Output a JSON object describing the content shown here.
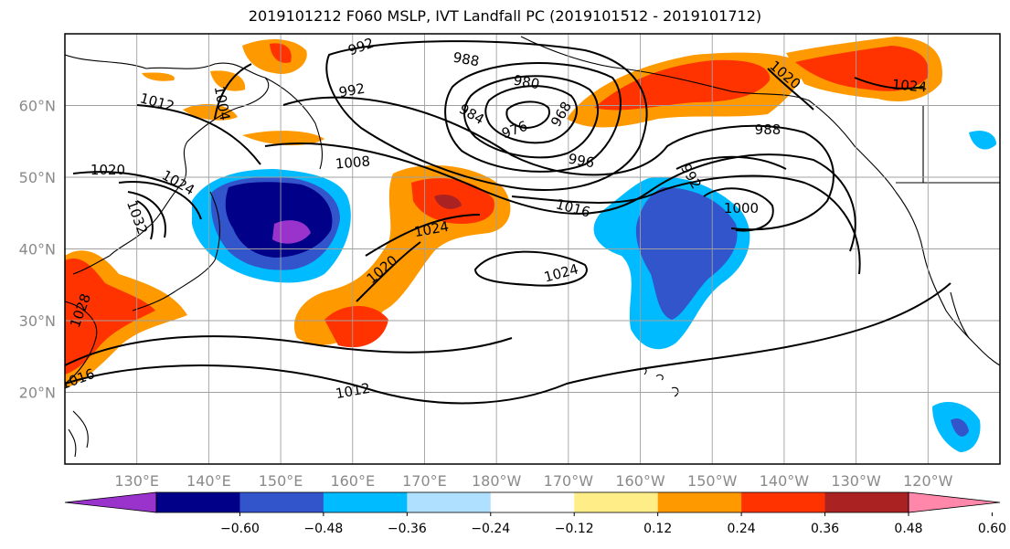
{
  "title": "2019101212 F060 MSLP, IVT Landfall PC (2019101512 - 2019101712)",
  "map": {
    "lon_range": [
      120,
      250
    ],
    "lat_range": [
      10,
      70
    ],
    "lon_ticks": [
      "130°E",
      "140°E",
      "150°E",
      "160°E",
      "170°E",
      "180°W",
      "170°W",
      "160°W",
      "150°W",
      "140°W",
      "130°W",
      "120°W"
    ],
    "lat_ticks": [
      "20°N",
      "30°N",
      "40°N",
      "50°N",
      "60°N"
    ],
    "lat_tick_values": [
      20,
      30,
      40,
      50,
      60
    ],
    "lon_tick_values": [
      130,
      140,
      150,
      160,
      170,
      180,
      190,
      200,
      210,
      220,
      230,
      240
    ],
    "grid": true
  },
  "colorbar": {
    "colors": [
      "#9933cc",
      "#000088",
      "#3355cc",
      "#00bbff",
      "#b0e0ff",
      "#ffffff",
      "#ffee88",
      "#ff9900",
      "#ff3300",
      "#aa2222",
      "#ff88aa"
    ],
    "tick_labels": [
      "−0.60",
      "−0.48",
      "−0.36",
      "−0.24",
      "−0.12",
      "0.12",
      "0.24",
      "0.36",
      "0.48",
      "0.60"
    ]
  },
  "isobar_labels": [
    "992",
    "988",
    "980",
    "992",
    "1012",
    "1004",
    "984",
    "976",
    "968",
    "996",
    "1008",
    "1020",
    "1024",
    "1032",
    "1016",
    "1024",
    "1020",
    "1024",
    "1000",
    "1012",
    "1016",
    "992",
    "1020",
    "1024",
    "988",
    "1028"
  ]
}
